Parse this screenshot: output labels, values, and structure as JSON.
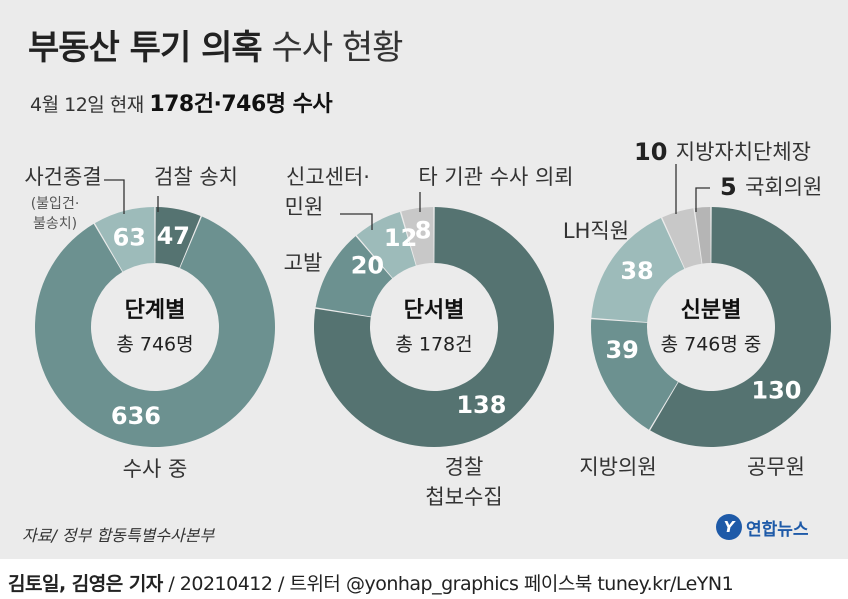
{
  "title": {
    "bold": "부동산 투기 의혹",
    "light": "수사 현황"
  },
  "subtitle": {
    "date": "4월 12일 현재",
    "highlight": "178건·746명 수사"
  },
  "colors": {
    "background": "#ebebeb",
    "darkest": "#557371",
    "main": "#6c9190",
    "light": "#9dbbba",
    "gray": "#c8c8c8",
    "ring_dark": "#4f6f6d"
  },
  "chart_data": [
    {
      "type": "donut",
      "center_title": "단계별",
      "center_sub": "총 746명",
      "total": 746,
      "segments": [
        {
          "label": "검찰 송치",
          "value": 47,
          "color": "#557371"
        },
        {
          "label": "수사 중",
          "value": 636,
          "color": "#6c9190"
        },
        {
          "label": "사건종결",
          "sublabel": [
            "(불입건·",
            "불송치)"
          ],
          "value": 63,
          "color": "#9dbbba"
        }
      ]
    },
    {
      "type": "donut",
      "center_title": "단서별",
      "center_sub": "총 178건",
      "total": 178,
      "segments": [
        {
          "label": "경찰 첩보수집",
          "value": 138,
          "color": "#557371"
        },
        {
          "label": "고발",
          "value": 20,
          "color": "#6c9190"
        },
        {
          "label": "신고센터· 민원",
          "value": 12,
          "color": "#9dbbba"
        },
        {
          "label": "타 기관 수사 의뢰",
          "value": 8,
          "color": "#c8c8c8"
        }
      ]
    },
    {
      "type": "donut",
      "center_title": "신분별",
      "center_sub": "총 746명 중",
      "total": 746,
      "segments": [
        {
          "label": "공무원",
          "value": 130,
          "color": "#557371"
        },
        {
          "label": "지방의원",
          "value": 39,
          "color": "#6c9190"
        },
        {
          "label": "LH직원",
          "value": 38,
          "color": "#9dbbba"
        },
        {
          "label": "지방자치단체장",
          "value": 10,
          "color": "#c8c8c8"
        },
        {
          "label": "국회의원",
          "value": 5,
          "color": "#b5b5b5"
        }
      ]
    }
  ],
  "source": "자료/ 정부 합동특별수사본부",
  "logo": {
    "mark": "Y",
    "text": "연합뉴스"
  },
  "footer": {
    "reporters": "김토일, 김영은 기자",
    "rest": " / 20210412 / 트위터 @yonhap_graphics  페이스북 tuney.kr/LeYN1"
  }
}
